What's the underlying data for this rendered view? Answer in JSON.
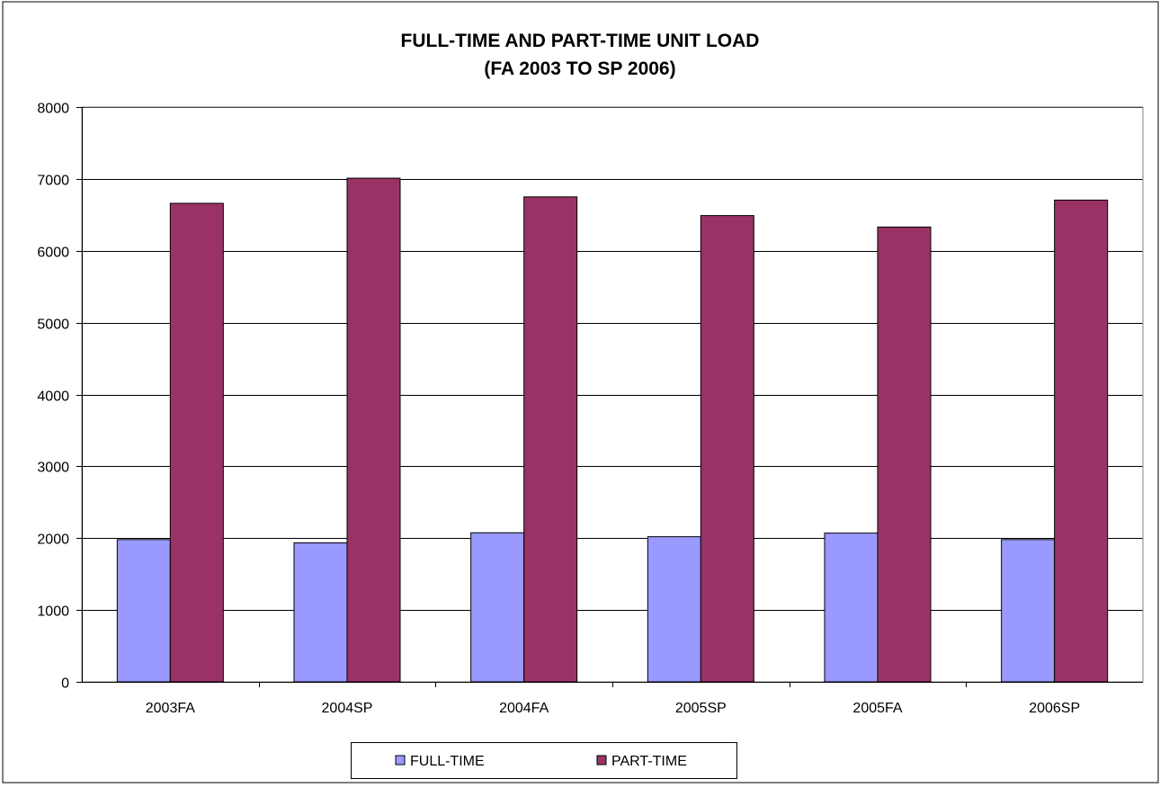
{
  "chart_data": {
    "type": "bar",
    "title_line1": "FULL-TIME AND PART-TIME UNIT LOAD",
    "title_line2": "(FA 2003 TO SP 2006)",
    "categories": [
      "2003FA",
      "2004SP",
      "2004FA",
      "2005SP",
      "2005FA",
      "2006SP"
    ],
    "series": [
      {
        "name": "FULL-TIME",
        "color": "#9999FF",
        "values": [
          1980,
          1935,
          2075,
          2020,
          2070,
          1980
        ]
      },
      {
        "name": "PART-TIME",
        "color": "#993366",
        "values": [
          6660,
          7010,
          6750,
          6490,
          6330,
          6705
        ]
      }
    ],
    "ylim": [
      0,
      8000
    ],
    "yticks": [
      "0",
      "1000",
      "2000",
      "3000",
      "4000",
      "5000",
      "6000",
      "7000",
      "8000"
    ],
    "grid": true,
    "legend_position": "bottom"
  }
}
